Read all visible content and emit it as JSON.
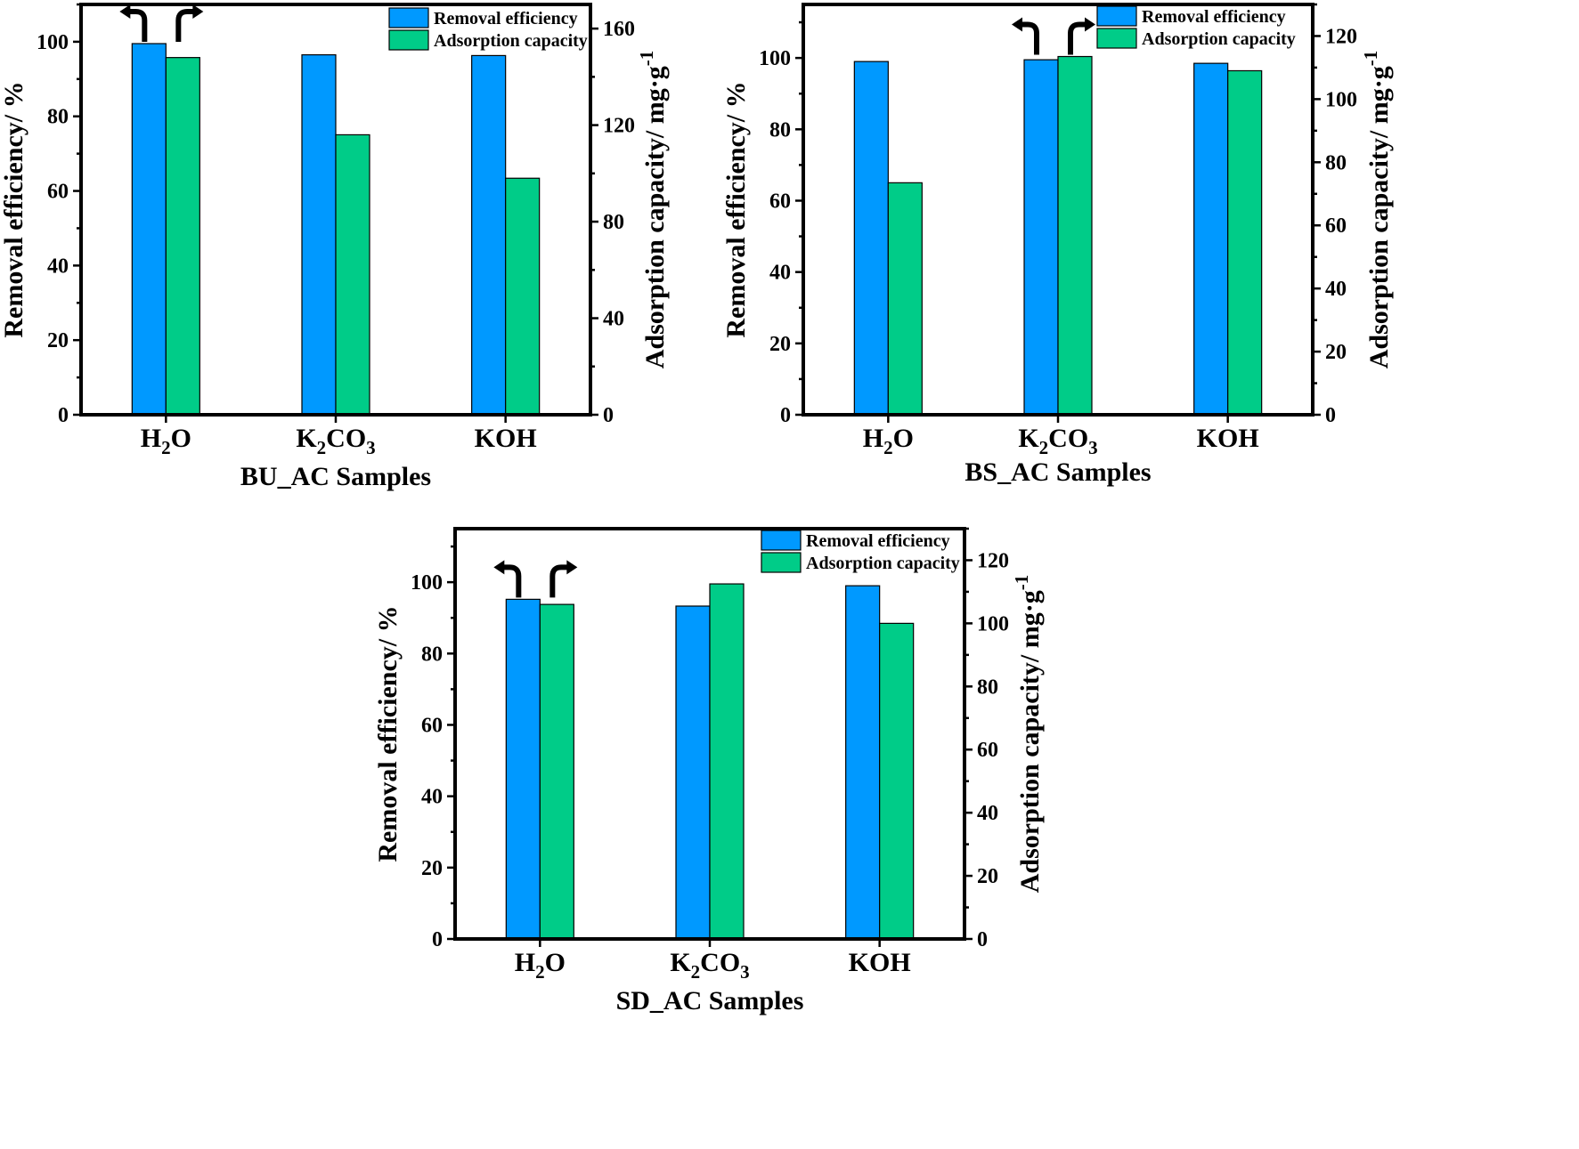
{
  "colors": {
    "removal": "#0099ff",
    "adsorption": "#00cc88",
    "axis": "#000000"
  },
  "chart_data": [
    {
      "type": "bar",
      "categories": [
        "H2O",
        "K2CO3",
        "KOH"
      ],
      "xlabel": "BU_AC Samples",
      "ylabel": "Removal efficiency/ %",
      "y2label": "Adsorption capacity/ mg.g-1",
      "ylim": [
        0,
        110
      ],
      "y2lim": [
        0,
        170
      ],
      "yticks": [
        0,
        20,
        40,
        60,
        80,
        100
      ],
      "y2ticks": [
        0,
        40,
        80,
        120,
        160
      ],
      "legend_position": "top-right",
      "annotation": "arrows over H2O pointing left to removal axis and right to adsorption axis",
      "series": [
        {
          "name": "Removal efficiency",
          "axis": "left",
          "values": [
            99.5,
            96.5,
            96.3
          ]
        },
        {
          "name": "Adsorption capacity",
          "axis": "right",
          "values": [
            148,
            116,
            98
          ]
        }
      ]
    },
    {
      "type": "bar",
      "categories": [
        "H2O",
        "K2CO3",
        "KOH"
      ],
      "xlabel": "BS_AC Samples",
      "ylabel": "Removal efficiency/ %",
      "y2label": "Adsorption capacity/ mg.g-1",
      "ylim": [
        0,
        115
      ],
      "y2lim": [
        0,
        130
      ],
      "yticks": [
        0,
        20,
        40,
        60,
        80,
        100
      ],
      "y2ticks": [
        0,
        20,
        40,
        60,
        80,
        100,
        120
      ],
      "legend_position": "top-right",
      "annotation": "arrows over K2CO3 pointing left to removal axis and right to adsorption axis",
      "series": [
        {
          "name": "Removal efficiency",
          "axis": "left",
          "values": [
            99,
            99.5,
            98.5
          ]
        },
        {
          "name": "Adsorption capacity",
          "axis": "right",
          "values": [
            73.5,
            113.5,
            109
          ]
        }
      ]
    },
    {
      "type": "bar",
      "categories": [
        "H2O",
        "K2CO3",
        "KOH"
      ],
      "xlabel": "SD_AC Samples",
      "ylabel": "Removal efficiency/ %",
      "y2label": "Adsorption capacity/ mg.g-1",
      "ylim": [
        0,
        115
      ],
      "y2lim": [
        0,
        130
      ],
      "yticks": [
        0,
        20,
        40,
        60,
        80,
        100
      ],
      "y2ticks": [
        0,
        20,
        40,
        60,
        80,
        100,
        120
      ],
      "legend_position": "top-right",
      "annotation": "arrows over H2O pointing left to removal axis and right to adsorption axis",
      "series": [
        {
          "name": "Removal efficiency",
          "axis": "left",
          "values": [
            95.2,
            93.3,
            99
          ]
        },
        {
          "name": "Adsorption capacity",
          "axis": "right",
          "values": [
            106,
            112.5,
            100
          ]
        }
      ]
    }
  ]
}
